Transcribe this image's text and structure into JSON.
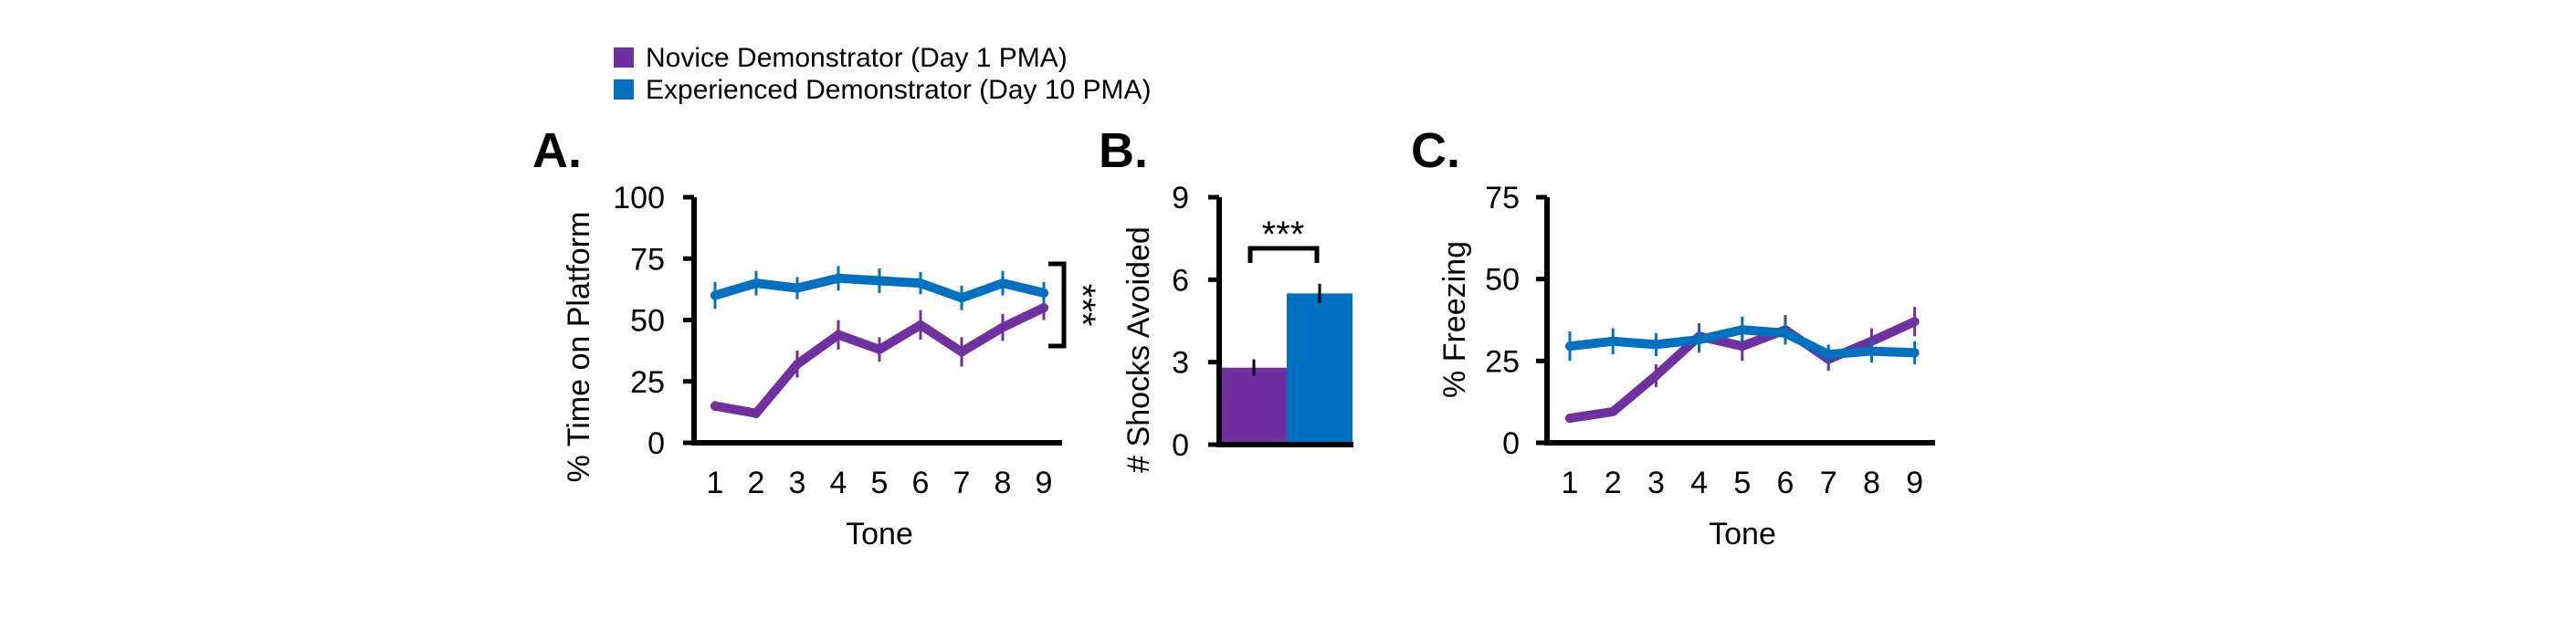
{
  "legend": {
    "items": [
      {
        "label": "Novice Demonstrator (Day 1 PMA)",
        "color": "#7030A0"
      },
      {
        "label": "Experienced Demonstrator (Day 10 PMA)",
        "color": "#0070C0"
      }
    ]
  },
  "chart_data": [
    {
      "panel": "A.",
      "type": "line",
      "title": "",
      "xlabel": "Tone",
      "ylabel": "% Time on Platform",
      "x": [
        1,
        2,
        3,
        4,
        5,
        6,
        7,
        8,
        9
      ],
      "x_tick_labels": [
        "1",
        "2",
        "3",
        "4",
        "5",
        "6",
        "7",
        "8",
        "9"
      ],
      "ylim": [
        0,
        100
      ],
      "y_ticks": [
        0,
        25,
        50,
        75,
        100
      ],
      "y_tick_labels": [
        "0",
        "25",
        "50",
        "75",
        "100"
      ],
      "grid": false,
      "series": [
        {
          "name": "Novice Demonstrator (Day 1 PMA)",
          "color": "#7030A0",
          "values": [
            15,
            12,
            32,
            44,
            38,
            48,
            37,
            47,
            55
          ],
          "error": [
            2,
            2,
            5.5,
            6,
            5,
            6,
            6,
            5.5,
            5
          ]
        },
        {
          "name": "Experienced Demonstrator (Day 10 PMA)",
          "color": "#0070C0",
          "values": [
            60,
            65,
            63,
            67,
            66,
            65,
            59,
            65,
            61
          ],
          "error": [
            5.5,
            5,
            4.5,
            5,
            5,
            4.5,
            5,
            5,
            4.5
          ]
        }
      ],
      "annotation": {
        "text": "***",
        "orientation": "vertical",
        "bracket_range": [
          38,
          71
        ]
      }
    },
    {
      "panel": "B.",
      "type": "bar",
      "title": "",
      "xlabel": "",
      "ylabel": "# Shocks Avoided",
      "categories": [
        "Novice Demonstrator (Day 1 PMA)",
        "Experienced Demonstrator (Day 10 PMA)"
      ],
      "values": [
        2.8,
        5.5
      ],
      "error": [
        0.3,
        0.35
      ],
      "colors": [
        "#7030A0",
        "#0070C0"
      ],
      "ylim": [
        0,
        9
      ],
      "y_ticks": [
        0,
        3,
        6,
        9
      ],
      "y_tick_labels": [
        "0",
        "3",
        "6",
        "9"
      ],
      "grid": false,
      "annotation": {
        "text": "***",
        "orientation": "horizontal",
        "bracket_level": 7.2
      }
    },
    {
      "panel": "C.",
      "type": "line",
      "title": "",
      "xlabel": "Tone",
      "ylabel": "% Freezing",
      "x": [
        1,
        2,
        3,
        4,
        5,
        6,
        7,
        8,
        9
      ],
      "x_tick_labels": [
        "1",
        "2",
        "3",
        "4",
        "5",
        "6",
        "7",
        "8",
        "9"
      ],
      "ylim": [
        0,
        75
      ],
      "y_ticks": [
        0,
        25,
        50,
        75
      ],
      "y_tick_labels": [
        "0",
        "25",
        "50",
        "75"
      ],
      "grid": false,
      "series": [
        {
          "name": "Novice Demonstrator (Day 1 PMA)",
          "color": "#7030A0",
          "values": [
            7.5,
            9.5,
            20.5,
            32.5,
            29.5,
            34.5,
            25.5,
            31,
            37
          ],
          "error": [
            1,
            1,
            3.5,
            4,
            4.5,
            4.5,
            3.5,
            4,
            4.5
          ]
        },
        {
          "name": "Experienced Demonstrator (Day 10 PMA)",
          "color": "#0070C0",
          "values": [
            29.5,
            31,
            30,
            31.5,
            34.5,
            33.5,
            27,
            28,
            27.5
          ],
          "error": [
            4.5,
            4,
            3.5,
            4,
            4,
            3.5,
            3,
            3.5,
            3.5
          ]
        }
      ]
    }
  ]
}
